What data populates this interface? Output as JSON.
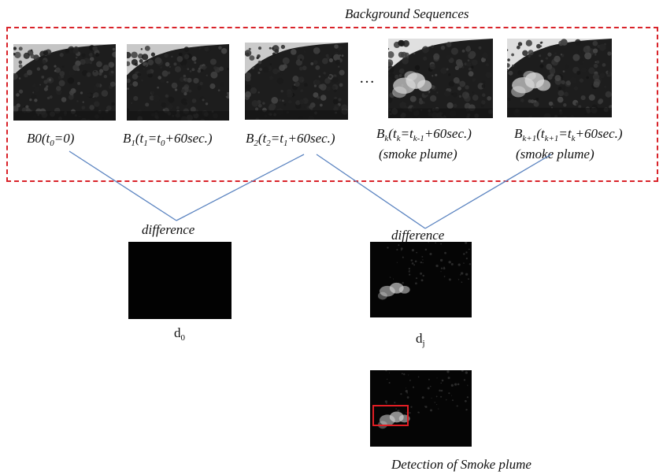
{
  "header": {
    "title": "Background Sequences"
  },
  "frames": [
    {
      "id": "B0",
      "label_html": "B0(t<sub>0</sub>=0)",
      "smoke": false
    },
    {
      "id": "B1",
      "label_html": "B<sub>1</sub>(t<sub>1</sub>=t<sub>0</sub>+60sec.)",
      "smoke": false
    },
    {
      "id": "B2",
      "label_html": "B<sub>2</sub>(t<sub>2</sub>=t<sub>1</sub>+60sec.)",
      "smoke": false
    },
    {
      "id": "Bk",
      "label_html": "B<sub>k</sub>(t<sub>k</sub>=t<sub>k-1</sub>+60sec.)",
      "smoke": true,
      "note": "(smoke plume)"
    },
    {
      "id": "Bk1",
      "label_html": "B<sub>k+1</sub>(t<sub>k+1</sub>=t<sub>k</sub>+60sec.)",
      "smoke": true,
      "note": "(smoke plume)"
    }
  ],
  "ellipsis": "…",
  "difference_label": "difference",
  "results": {
    "d0_html": "d<sub>0</sub>",
    "dj_html": "d<sub>j</sub>",
    "detection_label": "Detection of Smoke plume"
  },
  "colors": {
    "dashed_border": "#d9232a",
    "connector": "#5a83c0",
    "detection_box": "#e01e24",
    "dark_frame": "#020202"
  }
}
